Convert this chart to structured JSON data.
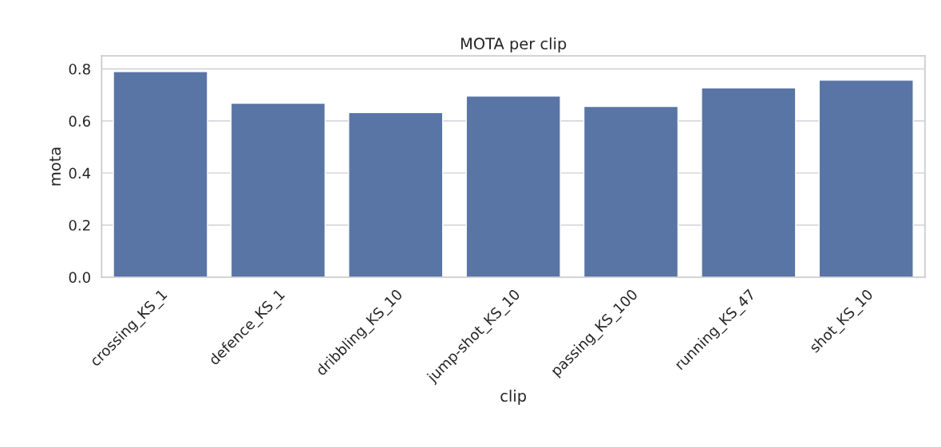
{
  "chart_data": {
    "type": "bar",
    "title": "MOTA per clip",
    "xlabel": "clip",
    "ylabel": "mota",
    "categories": [
      "crossing_KS_1",
      "defence_KS_1",
      "dribbling_KS_10",
      "jump-shot_KS_10",
      "passing_KS_100",
      "running_KS_47",
      "shot_KS_10"
    ],
    "values": [
      0.79,
      0.668,
      0.632,
      0.696,
      0.656,
      0.727,
      0.757
    ],
    "color": "#5975a5",
    "ylim": [
      0,
      0.85
    ],
    "yticks": [
      {
        "value": 0,
        "label": "0.0"
      },
      0.2,
      0.4,
      0.6,
      0.8
    ],
    "grid": "y"
  }
}
